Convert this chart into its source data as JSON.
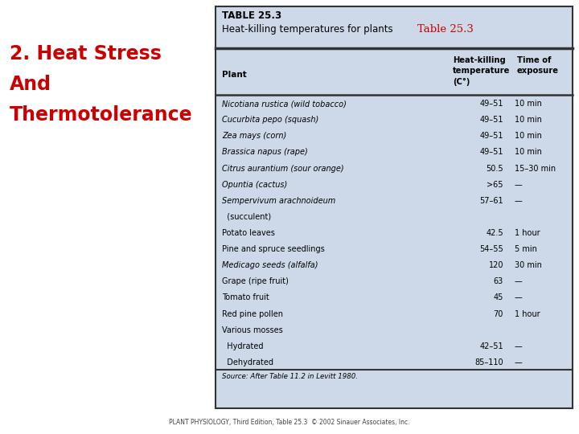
{
  "left_title_lines": [
    "2. Heat Stress",
    "And",
    "Thermotolerance"
  ],
  "left_title_color": "#cc0000",
  "table_title_bold": "TABLE 25.3",
  "table_subtitle_black": "Heat-killing temperatures for plants",
  "table_subtitle_red": "Table 25.3",
  "col_headers": [
    "Plant",
    "Heat-killing\ntemperature\n(C°)",
    "Time of\nexposure"
  ],
  "rows": [
    [
      "Nicotiana rustica (wild tobacco)",
      "49–51",
      "10 min",
      true
    ],
    [
      "Cucurbita pepo (squash)",
      "49–51",
      "10 min",
      true
    ],
    [
      "Zea mays (corn)",
      "49–51",
      "10 min",
      true
    ],
    [
      "Brassica napus (rape)",
      "49–51",
      "10 min",
      true
    ],
    [
      "Citrus aurantium (sour orange)",
      "50.5",
      "15–30 min",
      true
    ],
    [
      "Opuntia (cactus)",
      ">65",
      "—",
      true
    ],
    [
      "Sempervivum arachnoideum",
      "57–61",
      "—",
      true
    ],
    [
      "  (succulent)",
      "",
      "",
      false
    ],
    [
      "Potato leaves",
      "42.5",
      "1 hour",
      false
    ],
    [
      "Pine and spruce seedlings",
      "54–55",
      "5 min",
      false
    ],
    [
      "Medicago seeds (alfalfa)",
      "120",
      "30 min",
      true
    ],
    [
      "Grape (ripe fruit)",
      "63",
      "—",
      false
    ],
    [
      "Tomato fruit",
      "45",
      "—",
      false
    ],
    [
      "Red pine pollen",
      "70",
      "1 hour",
      false
    ],
    [
      "Various mosses",
      "",
      "",
      false
    ],
    [
      "  Hydrated",
      "42–51",
      "—",
      false
    ],
    [
      "  Dehydrated",
      "85–110",
      "—",
      false
    ]
  ],
  "source_text": "Source: After Table 11.2 in Levitt 1980.",
  "footer_text": "PLANT PHYSIOLOGY, Third Edition, Table 25.3  © 2002 Sinauer Associates, Inc.",
  "bg_color": "#ffffff",
  "table_bg": "#cdd9e8",
  "border_color": "#333333"
}
